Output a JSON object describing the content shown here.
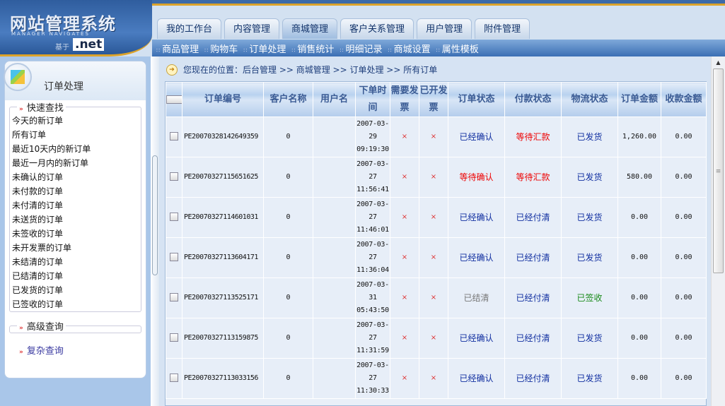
{
  "header": {
    "logo_title": "网站管理系统",
    "logo_subtitle": "MANAGER NAVIGATES",
    "logo_based_on": "基于",
    "logo_net": ".net",
    "tabs": [
      {
        "label": "我的工作台"
      },
      {
        "label": "内容管理"
      },
      {
        "label": "商城管理",
        "active": true
      },
      {
        "label": "客户关系管理"
      },
      {
        "label": "用户管理"
      },
      {
        "label": "附件管理"
      }
    ],
    "subnav": [
      "商品管理",
      "购物车",
      "订单处理",
      "销售统计",
      "明细记录",
      "商城设置",
      "属性模板"
    ]
  },
  "sidebar": {
    "title": "订单处理",
    "quick_legend": "快速查找",
    "quick_items": [
      "今天的新订单",
      "所有订单",
      "最近10天内的新订单",
      "最近一月内的新订单",
      "未确认的订单",
      "未付款的订单",
      "未付清的订单",
      "未送货的订单",
      "未签收的订单",
      "未开发票的订单",
      "未结清的订单",
      "已结清的订单",
      "已发货的订单",
      "已签收的订单"
    ],
    "advanced_legend": "高级查询",
    "complex_query": "复杂查询"
  },
  "breadcrumb": "您现在的位置：后台管理 >> 商城管理 >> 订单处理 >> 所有订单",
  "table": {
    "headers": [
      "订单编号",
      "客户名称",
      "用户名",
      "下单时间",
      "需要发票",
      "已开发票",
      "订单状态",
      "付款状态",
      "物流状态",
      "订单金额",
      "收款金额"
    ],
    "header_wrapped": {
      "time": [
        "下单时",
        "间"
      ],
      "need_invoice": [
        "需要发",
        "票"
      ],
      "invoiced": [
        "已开发",
        "票"
      ]
    },
    "rows": [
      {
        "id": "PE20070328142649359",
        "customer": "0",
        "user": "",
        "date": "2007-03-",
        "day": "29",
        "time": "09:19:30",
        "need_invoice": "×",
        "invoiced": "×",
        "order_status": "已经确认",
        "order_color": "blue",
        "pay_status": "等待汇款",
        "pay_color": "red",
        "ship_status": "已发货",
        "ship_color": "blue",
        "amount": "1,260.00",
        "received": "0.00"
      },
      {
        "id": "PE20070327115651625",
        "customer": "0",
        "user": "",
        "date": "2007-03-",
        "day": "27",
        "time": "11:56:41",
        "need_invoice": "×",
        "invoiced": "×",
        "order_status": "等待确认",
        "order_color": "red",
        "pay_status": "等待汇款",
        "pay_color": "red",
        "ship_status": "已发货",
        "ship_color": "blue",
        "amount": "580.00",
        "received": "0.00"
      },
      {
        "id": "PE20070327114601031",
        "customer": "0",
        "user": "",
        "date": "2007-03-",
        "day": "27",
        "time": "11:46:01",
        "need_invoice": "×",
        "invoiced": "×",
        "order_status": "已经确认",
        "order_color": "blue",
        "pay_status": "已经付清",
        "pay_color": "blue",
        "ship_status": "已发货",
        "ship_color": "blue",
        "amount": "0.00",
        "received": "0.00"
      },
      {
        "id": "PE20070327113604171",
        "customer": "0",
        "user": "",
        "date": "2007-03-",
        "day": "27",
        "time": "11:36:04",
        "need_invoice": "×",
        "invoiced": "×",
        "order_status": "已经确认",
        "order_color": "blue",
        "pay_status": "已经付清",
        "pay_color": "blue",
        "ship_status": "已发货",
        "ship_color": "blue",
        "amount": "0.00",
        "received": "0.00"
      },
      {
        "id": "PE20070327113525171",
        "customer": "0",
        "user": "",
        "date": "2007-03-",
        "day": "31",
        "time": "05:43:50",
        "need_invoice": "×",
        "invoiced": "×",
        "order_status": "已结清",
        "order_color": "gray",
        "pay_status": "已经付清",
        "pay_color": "blue",
        "ship_status": "已签收",
        "ship_color": "green",
        "amount": "0.00",
        "received": "0.00"
      },
      {
        "id": "PE20070327113159875",
        "customer": "0",
        "user": "",
        "date": "2007-03-",
        "day": "27",
        "time": "11:31:59",
        "need_invoice": "×",
        "invoiced": "×",
        "order_status": "已经确认",
        "order_color": "blue",
        "pay_status": "已经付清",
        "pay_color": "blue",
        "ship_status": "已发货",
        "ship_color": "blue",
        "amount": "0.00",
        "received": "0.00"
      },
      {
        "id": "PE20070327113033156",
        "customer": "0",
        "user": "",
        "date": "2007-03-",
        "day": "27",
        "time": "11:30:33",
        "need_invoice": "×",
        "invoiced": "×",
        "order_status": "已经确认",
        "order_color": "blue",
        "pay_status": "已经付清",
        "pay_color": "blue",
        "ship_status": "已发货",
        "ship_color": "blue",
        "amount": "0.00",
        "received": "0.00"
      }
    ]
  }
}
